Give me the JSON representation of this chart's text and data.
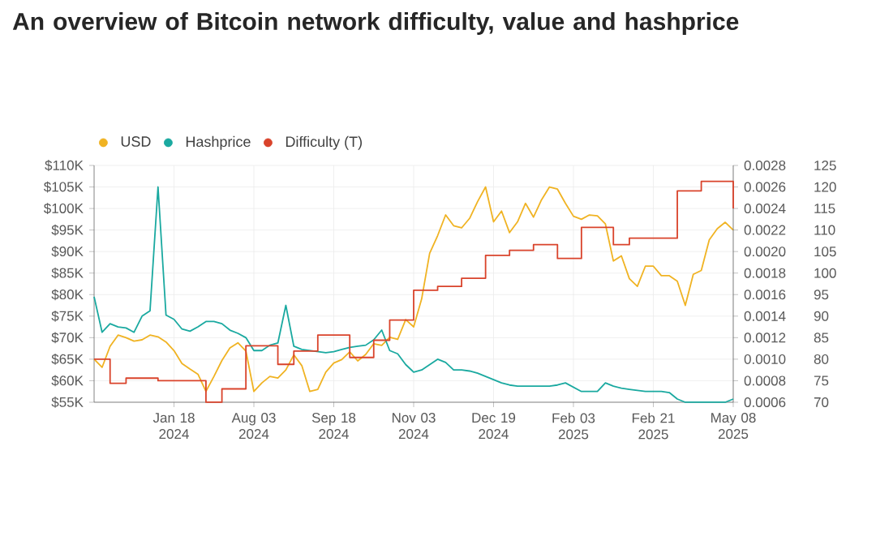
{
  "chart_data": {
    "type": "line",
    "title": "An overview of Bitcoin network difficulty, value and hashprice",
    "categories": [
      null,
      null,
      null,
      null,
      null,
      null,
      null,
      null,
      null,
      null,
      "Jan 18 2024",
      null,
      null,
      null,
      null,
      null,
      null,
      null,
      null,
      null,
      "Aug 03 2024",
      null,
      null,
      null,
      null,
      null,
      null,
      null,
      null,
      null,
      "Sep 18 2024",
      null,
      null,
      null,
      null,
      null,
      null,
      null,
      null,
      null,
      "Nov 03 2024",
      null,
      null,
      null,
      null,
      null,
      null,
      null,
      null,
      null,
      "Dec 19 2024",
      null,
      null,
      null,
      null,
      null,
      null,
      null,
      null,
      null,
      "Feb 03 2025",
      null,
      null,
      null,
      null,
      null,
      null,
      null,
      null,
      null,
      "Feb 21 2025",
      null,
      null,
      null,
      null,
      null,
      null,
      null,
      null,
      null,
      "May 08 2025"
    ],
    "ylim": [
      55000,
      110000
    ],
    "yticks": [
      {
        "value": 55000,
        "label": "$55K"
      },
      {
        "value": 60000,
        "label": "$60K"
      },
      {
        "value": 65000,
        "label": "$65K"
      },
      {
        "value": 70000,
        "label": "$70K"
      },
      {
        "value": 75000,
        "label": "$75K"
      },
      {
        "value": 80000,
        "label": "$80K"
      },
      {
        "value": 85000,
        "label": "$85K"
      },
      {
        "value": 90000,
        "label": "$90K"
      },
      {
        "value": 95000,
        "label": "$95K"
      },
      {
        "value": 100000,
        "label": "$100K"
      },
      {
        "value": 105000,
        "label": "$105K"
      },
      {
        "value": 110000,
        "label": "$110K"
      }
    ],
    "y2lim": [
      0.0006,
      0.0028
    ],
    "y2ticks": [
      0.0006,
      0.0008,
      {
        "value": 0.001,
        "label": "0.0010"
      },
      0.0012,
      0.0014,
      0.0016,
      0.0018,
      {
        "value": 0.002,
        "label": "0.0020"
      },
      0.0022,
      0.0024,
      0.0026,
      0.0028
    ],
    "y3lim": [
      70,
      125
    ],
    "y3ticks": [
      70,
      75,
      80,
      85,
      90,
      95,
      100,
      105,
      110,
      115,
      120,
      125
    ],
    "grid": true,
    "legend": "top left",
    "series": [
      {
        "name": "USD",
        "color": "#f0b323",
        "values": [
          65000,
          63100,
          68000,
          70600,
          70000,
          69200,
          69500,
          70600,
          70200,
          69000,
          67000,
          64000,
          62700,
          61500,
          57500,
          61000,
          64700,
          67600,
          68800,
          66900,
          57500,
          59500,
          61000,
          60600,
          62500,
          66000,
          63500,
          57500,
          58000,
          62000,
          64100,
          64900,
          66700,
          64600,
          66100,
          68600,
          68200,
          70100,
          69600,
          74200,
          72500,
          79000,
          89600,
          93700,
          98500,
          96000,
          95500,
          97700,
          101600,
          105000,
          96900,
          99400,
          94400,
          96900,
          101200,
          98000,
          102000,
          105000,
          104500,
          101200,
          98200,
          97500,
          98500,
          98300,
          96400,
          87800,
          89000,
          83700,
          81900,
          86600,
          86600,
          84400,
          84400,
          83100,
          77500,
          84700,
          85600,
          92700,
          95300,
          96800,
          95000
        ]
      },
      {
        "name": "Hashprice",
        "color": "#1aa9a0",
        "axis": "y2",
        "values": [
          0.00158,
          0.00125,
          0.00133,
          0.0013,
          0.00129,
          0.00125,
          0.0014,
          0.00145,
          0.0026,
          0.00141,
          0.00137,
          0.00128,
          0.00126,
          0.0013,
          0.00135,
          0.00135,
          0.00133,
          0.00127,
          0.00124,
          0.0012,
          0.00108,
          0.00108,
          0.00113,
          0.00115,
          0.0015,
          0.00112,
          0.00109,
          0.00108,
          0.00107,
          0.00106,
          0.00107,
          0.00109,
          0.00111,
          0.00112,
          0.00113,
          0.00118,
          0.00127,
          0.00108,
          0.00105,
          0.00095,
          0.00088,
          0.0009,
          0.00095,
          0.001,
          0.00097,
          0.0009,
          0.0009,
          0.00089,
          0.00087,
          0.00084,
          0.00081,
          0.00078,
          0.00076,
          0.00075,
          0.00075,
          0.00075,
          0.00075,
          0.00075,
          0.00076,
          0.00078,
          0.00074,
          0.0007,
          0.0007,
          0.0007,
          0.00078,
          0.00075,
          0.00073,
          0.00072,
          0.00071,
          0.0007,
          0.0007,
          0.0007,
          0.00069,
          0.00063,
          0.0006,
          0.0006,
          0.0006,
          0.0006,
          0.0006,
          0.0006,
          0.00063
        ]
      },
      {
        "name": "Difficulty (T)",
        "color": "#d9432b",
        "type": "step",
        "axis": "y3",
        "values": [
          80,
          80,
          74.4,
          74.4,
          75.6,
          75.6,
          75.6,
          75.6,
          75,
          75,
          75,
          75,
          75,
          75,
          70,
          70,
          73.1,
          73.1,
          73.1,
          83.1,
          83.1,
          83.1,
          83.1,
          78.8,
          78.8,
          81.9,
          81.9,
          81.9,
          85.6,
          85.6,
          85.6,
          85.6,
          80.4,
          80.4,
          80.4,
          84.4,
          84.4,
          89.1,
          89.1,
          89.1,
          96,
          96,
          96,
          96.9,
          96.9,
          96.9,
          98.8,
          98.8,
          98.8,
          104.1,
          104.1,
          104.1,
          105.3,
          105.3,
          105.3,
          106.6,
          106.6,
          106.6,
          103.4,
          103.4,
          103.4,
          110.6,
          110.6,
          110.6,
          110.6,
          106.6,
          106.6,
          108.1,
          108.1,
          108.1,
          108.1,
          108.1,
          108.1,
          119.1,
          119.1,
          119.1,
          121.3,
          121.3,
          121.3,
          121.3,
          115
        ]
      }
    ]
  }
}
